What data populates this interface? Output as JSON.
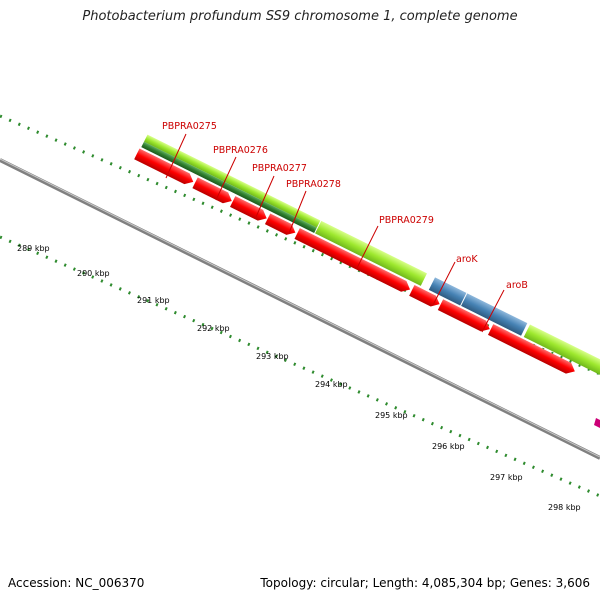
{
  "title": "Photobacterium profundum SS9 chromosome 1, complete genome",
  "footer": {
    "accession": "Accession: NC_006370",
    "summary": "Topology: circular; Length: 4,085,304 bp; Genes: 3,606"
  },
  "colors": {
    "backbone": "#888888",
    "tick": "#2e8b2e",
    "label_red": "#cc0000",
    "cds_red": "#ff0000",
    "gene_lime": "#9ee82e",
    "gene_darkgreen": "#2e7d2e",
    "gene_blue": "#0a0aff",
    "gene_olive": "#6b8e23",
    "gene_steelblue": "#4682b4",
    "gene_magenta": "#cc0077"
  },
  "scale_labels": [
    "289 kbp",
    "290 kbp",
    "291 kbp",
    "292 kbp",
    "293 kbp",
    "294 kbp",
    "295 kbp",
    "296 kbp",
    "297 kbp",
    "298 kbp"
  ],
  "gene_labels": [
    "PBPRA0275",
    "PBPRA0276",
    "PBPRA0277",
    "PBPRA0278",
    "PBPRA0279",
    "aroK",
    "aroB"
  ]
}
